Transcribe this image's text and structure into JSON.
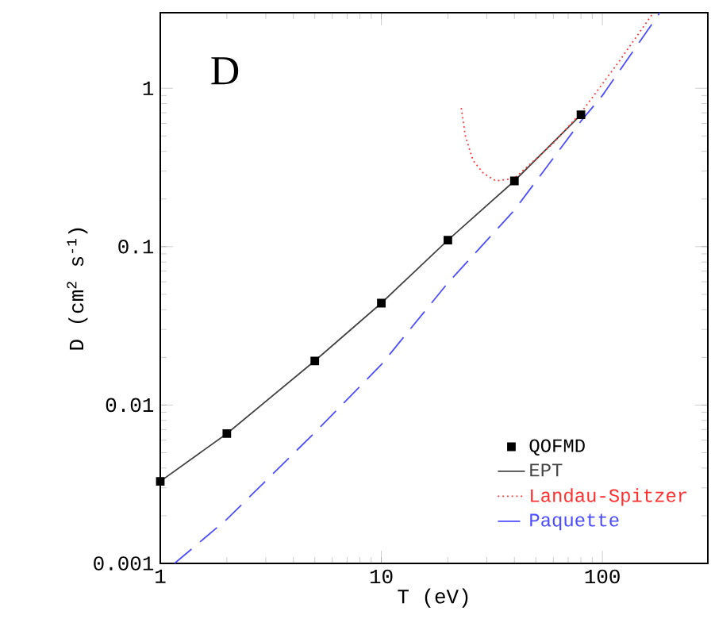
{
  "chart_data": {
    "type": "line",
    "title": "D",
    "xlabel": "T (eV)",
    "ylabel": "D (cm$^{2}$ s$^{-1}$)",
    "log": "xy",
    "xlim": [
      1,
      300
    ],
    "ylim": [
      0.001,
      3
    ],
    "xticks": [
      1,
      10,
      100
    ],
    "yticks": [
      0.001,
      0.01,
      0.1,
      1
    ],
    "legend": "bottom right",
    "series": [
      {
        "name": "QOFMD",
        "type": "scatter",
        "marker": "square",
        "color": "#000000",
        "x": [
          1,
          2,
          5,
          10,
          20,
          40,
          80
        ],
        "values": [
          0.0033,
          0.0066,
          0.019,
          0.044,
          0.11,
          0.26,
          0.68
        ]
      },
      {
        "name": "EPT",
        "line_style": "solid",
        "color": "#444444",
        "x": [
          1,
          2,
          5,
          10,
          20,
          40,
          80
        ],
        "values": [
          0.0033,
          0.0066,
          0.019,
          0.044,
          0.11,
          0.26,
          0.68
        ]
      },
      {
        "name": "Landau-Spitzer",
        "line_style": "dotted",
        "color": "#ff3030",
        "x": [
          23,
          24,
          26,
          29,
          33,
          40,
          60,
          80,
          120,
          170
        ],
        "values": [
          0.75,
          0.5,
          0.35,
          0.29,
          0.26,
          0.27,
          0.45,
          0.7,
          1.5,
          3
        ]
      },
      {
        "name": "Paquette",
        "line_style": "dashed",
        "color": "#4d4dff",
        "x": [
          1.16,
          2,
          5,
          10,
          20,
          40,
          80,
          100,
          182
        ],
        "values": [
          0.001,
          0.0019,
          0.0067,
          0.018,
          0.059,
          0.17,
          0.62,
          0.9,
          3
        ]
      }
    ]
  }
}
